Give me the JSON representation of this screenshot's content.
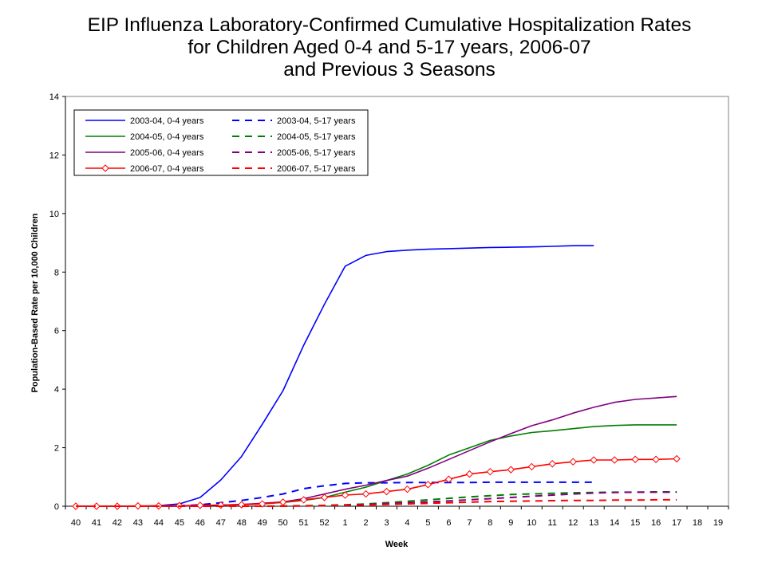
{
  "title_lines": [
    "EIP Influenza Laboratory-Confirmed Cumulative Hospitalization Rates",
    "for Children Aged 0-4 and 5-17 years, 2006-07",
    "and Previous 3 Seasons"
  ],
  "chart_data": {
    "type": "line",
    "xlabel": "Week",
    "ylabel": "Population-Based Rate per 10,000 Children",
    "ylim": [
      0,
      14
    ],
    "yticks": [
      0,
      2,
      4,
      6,
      8,
      10,
      12,
      14
    ],
    "grid": false,
    "legend_position": "top-left",
    "categories": [
      "40",
      "41",
      "42",
      "43",
      "44",
      "45",
      "46",
      "47",
      "48",
      "49",
      "50",
      "51",
      "52",
      "1",
      "2",
      "3",
      "4",
      "5",
      "6",
      "7",
      "8",
      "9",
      "10",
      "11",
      "12",
      "13",
      "14",
      "15",
      "16",
      "17",
      "18",
      "19"
    ],
    "series": [
      {
        "name": "2003-04, 0-4 years",
        "color": "#0000ff",
        "dash": "solid",
        "marker": "none",
        "values": [
          0,
          0,
          0,
          0,
          0.02,
          0.08,
          0.3,
          0.9,
          1.7,
          2.8,
          3.95,
          5.5,
          6.9,
          8.2,
          8.57,
          8.7,
          8.75,
          8.78,
          8.8,
          8.82,
          8.84,
          8.85,
          8.86,
          8.88,
          8.9,
          8.9,
          null,
          null,
          null,
          null,
          null,
          null
        ]
      },
      {
        "name": "2003-04, 5-17 years",
        "color": "#0000ff",
        "dash": "dashed",
        "marker": "none",
        "values": [
          0,
          0,
          0,
          0,
          0,
          0.02,
          0.05,
          0.12,
          0.2,
          0.3,
          0.42,
          0.6,
          0.7,
          0.78,
          0.8,
          0.8,
          0.81,
          0.81,
          0.81,
          0.81,
          0.82,
          0.82,
          0.82,
          0.82,
          0.82,
          0.82,
          null,
          null,
          null,
          null,
          null,
          null
        ]
      },
      {
        "name": "2004-05, 0-4 years",
        "color": "#008000",
        "dash": "solid",
        "marker": "none",
        "values": [
          0,
          0,
          0,
          0,
          0,
          0,
          0.02,
          0.04,
          0.06,
          0.08,
          0.13,
          0.2,
          0.3,
          0.48,
          0.65,
          0.88,
          1.1,
          1.4,
          1.75,
          2.0,
          2.25,
          2.4,
          2.52,
          2.58,
          2.65,
          2.72,
          2.76,
          2.78,
          2.78,
          2.78,
          null,
          null
        ]
      },
      {
        "name": "2004-05, 5-17 years",
        "color": "#008000",
        "dash": "dashed",
        "marker": "none",
        "values": [
          0,
          0,
          0,
          0,
          0,
          0,
          0,
          0,
          0,
          0,
          0.01,
          0.02,
          0.03,
          0.05,
          0.08,
          0.12,
          0.17,
          0.22,
          0.27,
          0.32,
          0.36,
          0.4,
          0.42,
          0.44,
          0.46,
          0.47,
          0.48,
          0.48,
          0.49,
          0.49,
          null,
          null
        ]
      },
      {
        "name": "2005-06, 0-4 years",
        "color": "#800080",
        "dash": "solid",
        "marker": "none",
        "values": [
          0,
          0,
          0,
          0,
          0,
          0,
          0.02,
          0.04,
          0.06,
          0.1,
          0.15,
          0.26,
          0.42,
          0.58,
          0.72,
          0.88,
          1.03,
          1.3,
          1.6,
          1.9,
          2.2,
          2.48,
          2.75,
          2.95,
          3.18,
          3.38,
          3.55,
          3.65,
          3.7,
          3.75,
          null,
          null
        ]
      },
      {
        "name": "2005-06, 5-17 years",
        "color": "#800080",
        "dash": "dashed",
        "marker": "none",
        "values": [
          0,
          0,
          0,
          0,
          0,
          0,
          0,
          0,
          0,
          0,
          0,
          0.01,
          0.02,
          0.04,
          0.06,
          0.09,
          0.12,
          0.15,
          0.18,
          0.22,
          0.26,
          0.3,
          0.34,
          0.38,
          0.42,
          0.45,
          0.47,
          0.48,
          0.48,
          0.48,
          null,
          null
        ]
      },
      {
        "name": "2006-07, 0-4 years",
        "color": "#ff0000",
        "dash": "solid",
        "marker": "diamond",
        "values": [
          0,
          0,
          0,
          0.01,
          0.01,
          0.02,
          0.03,
          0.04,
          0.05,
          0.08,
          0.14,
          0.22,
          0.3,
          0.38,
          0.42,
          0.5,
          0.58,
          0.74,
          0.92,
          1.1,
          1.18,
          1.25,
          1.35,
          1.45,
          1.52,
          1.58,
          1.58,
          1.6,
          1.6,
          1.62,
          null,
          null
        ]
      },
      {
        "name": "2006-07, 5-17 years",
        "color": "#ff0000",
        "dash": "dashed",
        "marker": "none",
        "values": [
          0,
          0,
          0,
          0,
          0,
          0,
          0,
          0,
          0,
          0,
          0,
          0.01,
          0.02,
          0.03,
          0.04,
          0.06,
          0.08,
          0.1,
          0.12,
          0.14,
          0.16,
          0.17,
          0.18,
          0.19,
          0.2,
          0.2,
          0.21,
          0.21,
          0.22,
          0.22,
          null,
          null
        ]
      }
    ]
  }
}
